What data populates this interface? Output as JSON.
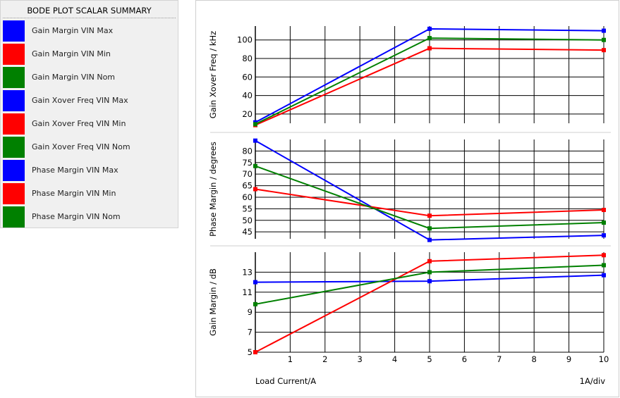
{
  "legend": {
    "title": "BODE PLOT SCALAR SUMMARY",
    "items": [
      {
        "label": "Gain Margin VIN Max",
        "color": "#0000ff"
      },
      {
        "label": "Gain Margin VIN Min",
        "color": "#ff0000"
      },
      {
        "label": "Gain Margin VIN Nom",
        "color": "#008000"
      },
      {
        "label": "Gain Xover Freq VIN Max",
        "color": "#0000ff"
      },
      {
        "label": "Gain Xover Freq VIN Min",
        "color": "#ff0000"
      },
      {
        "label": "Gain Xover Freq VIN Nom",
        "color": "#008000"
      },
      {
        "label": "Phase Margin VIN Max",
        "color": "#0000ff"
      },
      {
        "label": "Phase Margin VIN Min",
        "color": "#ff0000"
      },
      {
        "label": "Phase Margin VIN Nom",
        "color": "#008000"
      }
    ]
  },
  "chart_data": [
    {
      "type": "line",
      "ylabel": "Gain Xover Freq / kHz",
      "xlim": [
        0,
        10
      ],
      "ylim": [
        10,
        115
      ],
      "yticks": [
        20,
        40,
        60,
        80,
        100
      ],
      "grid": true,
      "series": [
        {
          "name": "Gain Xover Freq VIN Max",
          "color": "#0000ff",
          "x": [
            0,
            5,
            10
          ],
          "y": [
            11,
            112,
            110
          ]
        },
        {
          "name": "Gain Xover Freq VIN Min",
          "color": "#ff0000",
          "x": [
            0,
            5,
            10
          ],
          "y": [
            8,
            91,
            89
          ]
        },
        {
          "name": "Gain Xover Freq VIN Nom",
          "color": "#008000",
          "x": [
            0,
            5,
            10
          ],
          "y": [
            9,
            102,
            100
          ]
        }
      ]
    },
    {
      "type": "line",
      "ylabel": "Phase Margin / degrees",
      "xlim": [
        0,
        10
      ],
      "ylim": [
        42,
        85
      ],
      "yticks": [
        45,
        50,
        55,
        60,
        65,
        70,
        75,
        80
      ],
      "grid": true,
      "series": [
        {
          "name": "Phase Margin VIN Max",
          "color": "#0000ff",
          "x": [
            0,
            5,
            10
          ],
          "y": [
            84.5,
            41.5,
            43.5
          ]
        },
        {
          "name": "Phase Margin VIN Min",
          "color": "#ff0000",
          "x": [
            0,
            5,
            10
          ],
          "y": [
            63.5,
            52,
            54.5
          ]
        },
        {
          "name": "Phase Margin VIN Nom",
          "color": "#008000",
          "x": [
            0,
            5,
            10
          ],
          "y": [
            73.5,
            46.5,
            49
          ]
        }
      ]
    },
    {
      "type": "line",
      "ylabel": "Gain Margin / dB",
      "xlim": [
        0,
        10
      ],
      "ylim": [
        5,
        15
      ],
      "yticks": [
        5,
        7,
        9,
        11,
        13
      ],
      "grid": true,
      "series": [
        {
          "name": "Gain Margin VIN Max",
          "color": "#0000ff",
          "x": [
            0,
            5,
            10
          ],
          "y": [
            12,
            12.1,
            12.7
          ]
        },
        {
          "name": "Gain Margin VIN Min",
          "color": "#ff0000",
          "x": [
            0,
            5,
            10
          ],
          "y": [
            5,
            14.1,
            14.7
          ]
        },
        {
          "name": "Gain Margin VIN Nom",
          "color": "#008000",
          "x": [
            0,
            5,
            10
          ],
          "y": [
            9.8,
            13,
            13.7
          ]
        }
      ]
    }
  ],
  "x_axis": {
    "label": "Load Current/A",
    "scale_label": "1A/div",
    "ticks": [
      1,
      2,
      3,
      4,
      5,
      6,
      7,
      8,
      9,
      10
    ]
  }
}
